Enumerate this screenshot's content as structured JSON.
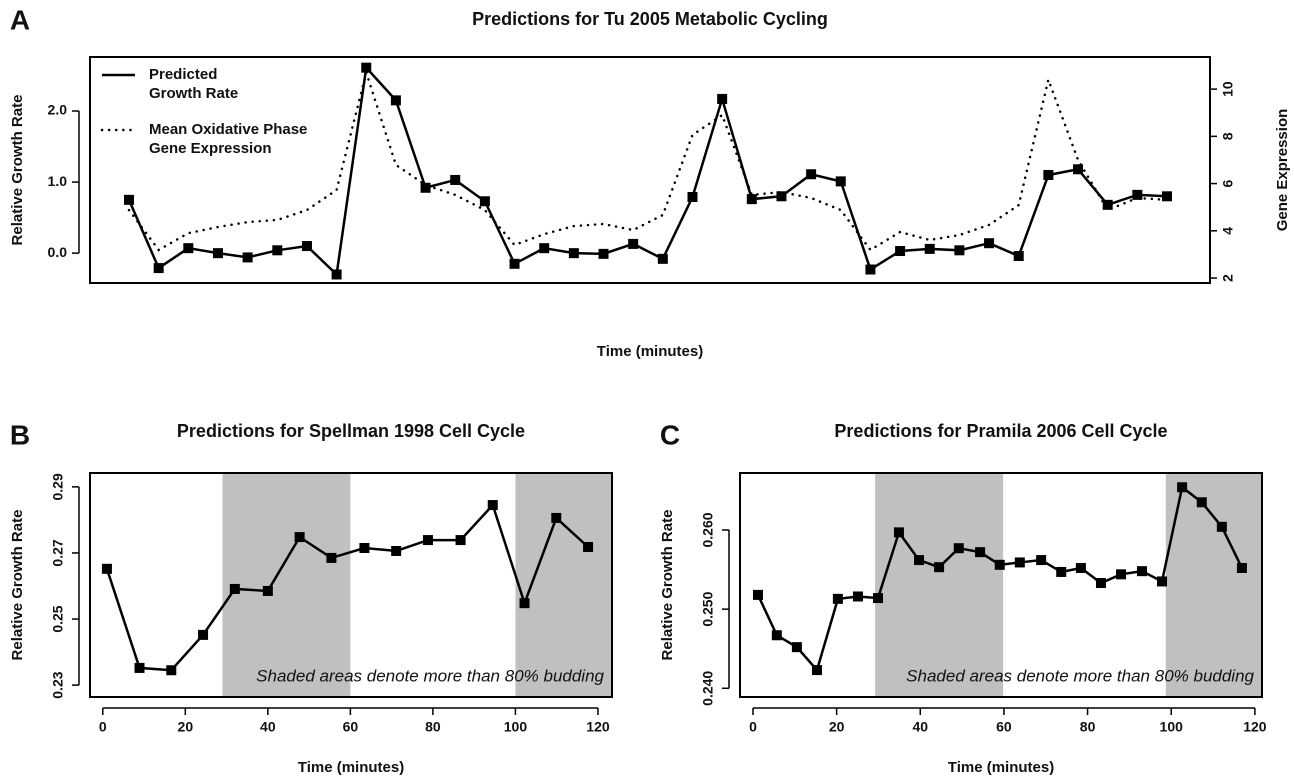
{
  "chart_data": [
    {
      "type": "line",
      "panel_label": "A",
      "title": "Predictions for Tu 2005 Metabolic Cycling",
      "x_label": "Time (minutes)",
      "y_label": "Relative Growth Rate",
      "y2_label": "Gene Expression",
      "categories": [
        null,
        null,
        null,
        null,
        null,
        null,
        null,
        null,
        null,
        null,
        null,
        null,
        null,
        null,
        null,
        null,
        null,
        null,
        null,
        null,
        null,
        null,
        null,
        null,
        null,
        null,
        null,
        null,
        null,
        null,
        null,
        null,
        null,
        null,
        null,
        null
      ],
      "series": [
        {
          "name": "Predicted Growth Rate",
          "color": "#000000",
          "style": "solid",
          "markers": true,
          "values": [
            0.75,
            -0.21,
            0.07,
            0.0,
            -0.06,
            0.04,
            0.1,
            -0.3,
            2.61,
            2.15,
            0.92,
            1.03,
            0.73,
            -0.15,
            0.07,
            0.0,
            -0.01,
            0.13,
            -0.08,
            0.79,
            2.17,
            0.76,
            0.8,
            1.11,
            1.01,
            -0.23,
            0.03,
            0.06,
            0.04,
            0.14,
            -0.04,
            1.1,
            1.18,
            0.68,
            0.82,
            0.8
          ]
        },
        {
          "name": "Mean Oxidative Phase Gene Expression",
          "color": "#000000",
          "style": "dotted",
          "markers": false,
          "axis": "y2",
          "values": [
            4.88,
            3.19,
            3.9,
            4.16,
            4.37,
            4.46,
            4.88,
            5.73,
            10.7,
            6.79,
            5.94,
            5.52,
            4.88,
            3.4,
            3.86,
            4.2,
            4.29,
            4.03,
            4.67,
            8.06,
            8.9,
            5.52,
            5.64,
            5.39,
            4.88,
            3.19,
            3.95,
            3.61,
            3.82,
            4.25,
            5.09,
            10.4,
            7.0,
            4.88,
            5.39,
            5.31
          ]
        }
      ],
      "ylim": [
        -0.42,
        2.76
      ],
      "yticks": [
        {
          "value": 0,
          "label": "0.0"
        },
        {
          "value": 1,
          "label": "1.0"
        },
        {
          "value": 2,
          "label": "2.0"
        }
      ],
      "y2lim": [
        1.79,
        11.36
      ],
      "y2ticks": [
        2,
        4,
        6,
        8,
        10
      ],
      "legend": "top-left"
    },
    {
      "type": "line",
      "panel_label": "B",
      "title": "Predictions for Spellman 1998 Cell Cycle",
      "x_label": "Time (minutes)",
      "y_label": "Relative Growth Rate",
      "annotation": "Shaded areas denote more than 80% budding",
      "shaded_regions": [
        [
          29,
          60
        ],
        [
          100,
          124
        ]
      ],
      "shade_color": "#c0c0c0",
      "x": [
        1,
        8.9,
        16.6,
        24.3,
        32,
        40,
        47.7,
        55.4,
        63.4,
        71.1,
        78.8,
        86.7,
        94.5,
        102.2,
        109.9,
        117.6
      ],
      "series": [
        {
          "name": "Predicted Growth Rate",
          "color": "#000000",
          "style": "solid",
          "markers": true,
          "values": [
            0.2652,
            0.2352,
            0.2345,
            0.2452,
            0.2591,
            0.2585,
            0.2748,
            0.2685,
            0.2715,
            0.2706,
            0.2739,
            0.2739,
            0.2845,
            0.2548,
            0.2806,
            0.2718
          ]
        }
      ],
      "xlim": [
        -3.1,
        123.4
      ],
      "xticks": [
        0,
        20,
        40,
        60,
        80,
        100,
        120
      ],
      "ylim": [
        0.2264,
        0.2942
      ],
      "yticks": [
        0.23,
        0.25,
        0.27,
        0.29
      ]
    },
    {
      "type": "line",
      "panel_label": "C",
      "title": "Predictions for Pramila 2006 Cell Cycle",
      "x_label": "Time (minutes)",
      "y_label": "Relative Growth Rate",
      "annotation": "Shaded areas denote more than 80% budding",
      "shaded_regions": [
        [
          29.2,
          59.8
        ],
        [
          98.7,
          124
        ]
      ],
      "shade_color": "#c0c0c0",
      "x": [
        1.2,
        5.7,
        10.5,
        15.3,
        20.3,
        25.1,
        29.9,
        34.9,
        39.7,
        44.5,
        49.2,
        54.3,
        59,
        63.8,
        68.9,
        73.7,
        78.4,
        83.2,
        88,
        93,
        97.8,
        102.6,
        107.3,
        112.1,
        116.9
      ],
      "series": [
        {
          "name": "Predicted Growth Rate",
          "color": "#000000",
          "style": "solid",
          "markers": true,
          "values": [
            0.2518,
            0.2467,
            0.2452,
            0.2423,
            0.2513,
            0.2516,
            0.2514,
            0.2597,
            0.2562,
            0.2553,
            0.2577,
            0.2572,
            0.2556,
            0.2559,
            0.2562,
            0.2547,
            0.2552,
            0.2533,
            0.2544,
            0.2548,
            0.2535,
            0.2654,
            0.2635,
            0.2604,
            0.2552
          ]
        }
      ],
      "xlim": [
        -3.1,
        121.7
      ],
      "xticks": [
        0,
        20,
        40,
        60,
        80,
        100,
        120
      ],
      "ylim": [
        0.2389,
        0.2672
      ],
      "yticks": [
        {
          "value": 0.24,
          "label": "0.240"
        },
        {
          "value": 0.25,
          "label": "0.250"
        },
        {
          "value": 0.26,
          "label": "0.260"
        }
      ]
    }
  ]
}
